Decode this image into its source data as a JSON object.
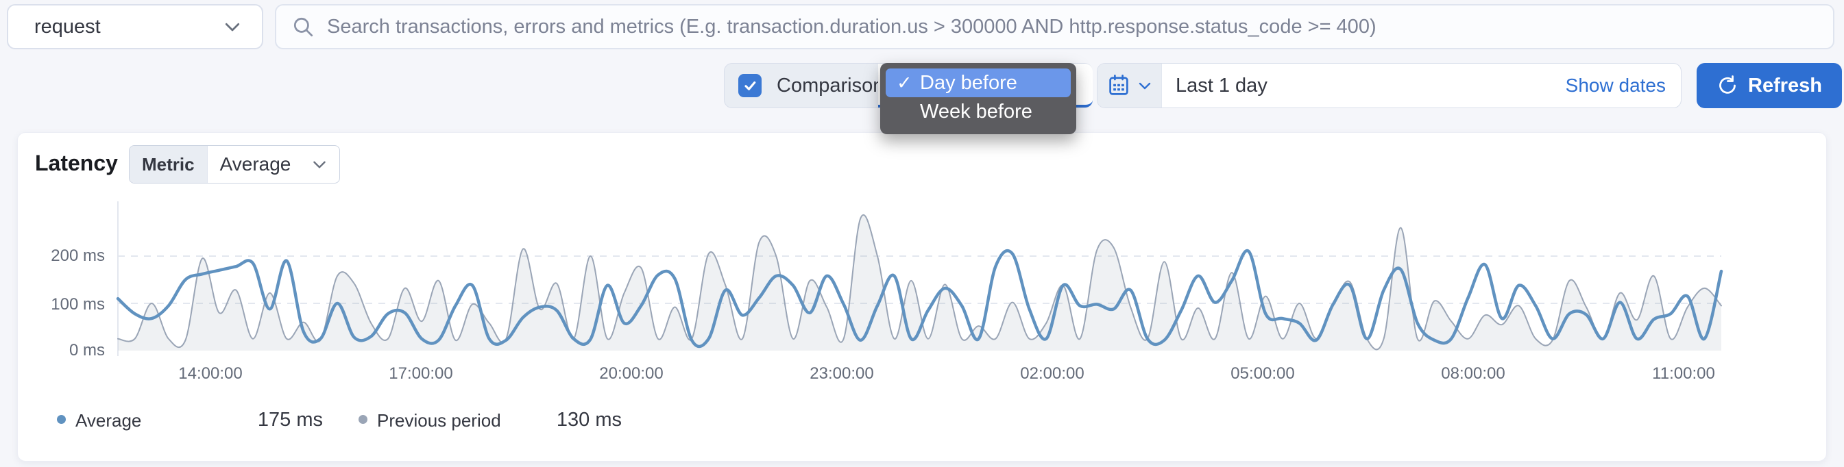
{
  "transaction_type_select": {
    "value": "request"
  },
  "search": {
    "placeholder": "Search transactions, errors and metrics (E.g. transaction.duration.us > 300000 AND http.response.status_code >= 400)"
  },
  "toolbar": {
    "comparison_label": "Comparison",
    "comparison_checked": true,
    "comparison_dropdown": {
      "options": [
        {
          "label": "Day before",
          "selected": true,
          "checkmark": "✓"
        },
        {
          "label": "Week before",
          "selected": false
        }
      ]
    },
    "datepicker": {
      "value": "Last 1 day",
      "show_dates_label": "Show dates"
    },
    "refresh_label": "Refresh"
  },
  "panel": {
    "title": "Latency",
    "metric_label": "Metric",
    "metric_value": "Average"
  },
  "legend": [
    {
      "label": "Average",
      "value": "175 ms",
      "color": "#6092C0"
    },
    {
      "label": "Previous period",
      "value": "130 ms",
      "color": "#9AA5B6"
    }
  ],
  "colors": {
    "primary": "#2E6FD2",
    "checkbox": "#3B79D4",
    "popup_bg": "#5C5C60",
    "popup_selected": "#6B97EA",
    "series_average": "#6092C0",
    "series_previous": "#9AA5B6",
    "gridline": "#E3E7EF"
  },
  "chart_data": {
    "type": "line",
    "title": "Latency",
    "ylabel": "ms",
    "ylim": [
      0,
      290
    ],
    "grid": "dashed-horizontal",
    "legend_position": "bottom-left",
    "yticks": [
      "0 ms",
      "100 ms",
      "200 ms"
    ],
    "xticks": [
      "14:00:00",
      "17:00:00",
      "20:00:00",
      "23:00:00",
      "02:00:00",
      "05:00:00",
      "08:00:00",
      "11:00:00"
    ],
    "x_range": "last 24 hours, ~15 min resolution",
    "series": [
      {
        "name": "Average",
        "summary_value": "175 ms",
        "color": "#6092C0",
        "values": [
          110,
          78,
          68,
          95,
          150,
          162,
          170,
          178,
          185,
          88,
          190,
          40,
          25,
          100,
          28,
          30,
          78,
          80,
          25,
          22,
          95,
          138,
          25,
          22,
          70,
          92,
          85,
          25,
          24,
          138,
          58,
          95,
          160,
          152,
          22,
          25,
          128,
          75,
          112,
          158,
          138,
          80,
          158,
          98,
          22,
          95,
          158,
          25,
          85,
          132,
          95,
          25,
          178,
          205,
          88,
          25,
          138,
          95,
          98,
          88,
          128,
          25,
          22,
          85,
          158,
          102,
          148,
          210,
          78,
          68,
          58,
          22,
          98,
          138,
          25,
          128,
          172,
          58,
          22,
          25,
          112,
          182,
          68,
          138,
          95,
          25,
          78,
          76,
          25,
          102,
          25,
          66,
          78,
          115,
          25,
          168
        ]
      },
      {
        "name": "Previous period",
        "summary_value": "130 ms",
        "color": "#9AA5B6",
        "values": [
          25,
          25,
          100,
          25,
          22,
          195,
          80,
          128,
          25,
          122,
          25,
          60,
          22,
          158,
          142,
          58,
          25,
          132,
          62,
          148,
          22,
          98,
          58,
          25,
          215,
          88,
          142,
          25,
          200,
          25,
          122,
          175,
          25,
          92,
          25,
          205,
          138,
          25,
          230,
          200,
          25,
          148,
          92,
          25,
          280,
          200,
          25,
          148,
          25,
          140,
          25,
          52,
          25,
          102,
          25,
          58,
          138,
          25,
          212,
          218,
          92,
          25,
          188,
          25,
          90,
          25,
          165,
          25,
          115,
          25,
          100,
          25,
          95,
          145,
          25,
          25,
          260,
          25,
          105,
          62,
          25,
          75,
          55,
          95,
          25,
          22,
          148,
          92,
          25,
          122,
          65,
          158,
          25,
          92,
          132,
          95
        ]
      }
    ]
  }
}
